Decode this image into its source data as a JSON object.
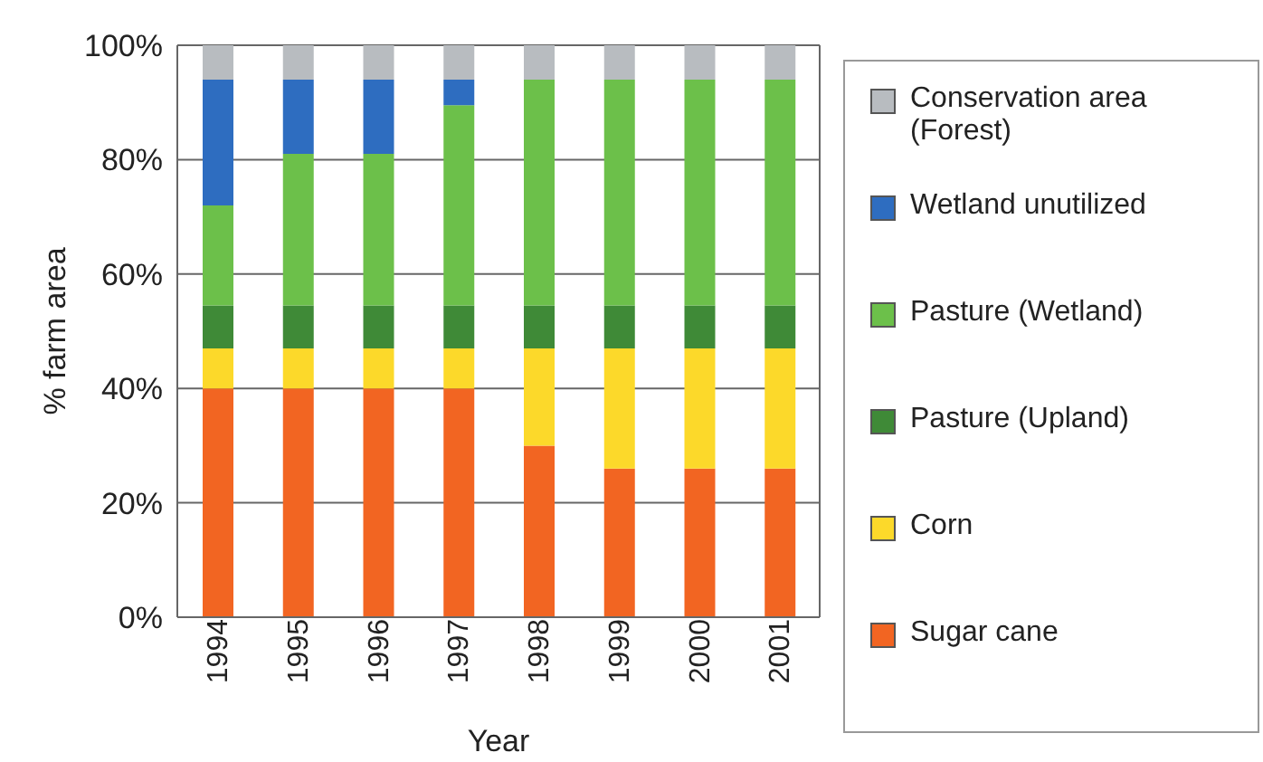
{
  "chart_data": {
    "type": "bar",
    "stacked": true,
    "xlabel": "Year",
    "ylabel": "% farm area",
    "categories": [
      "1994",
      "1995",
      "1996",
      "1997",
      "1998",
      "1999",
      "2000",
      "2001"
    ],
    "series": [
      {
        "name": "Sugar cane",
        "color": "#f26522",
        "values": [
          40,
          40,
          40,
          40,
          30,
          26,
          26,
          26
        ]
      },
      {
        "name": "Corn",
        "color": "#fcd92a",
        "values": [
          7,
          7,
          7,
          7,
          17,
          21,
          21,
          21
        ]
      },
      {
        "name": "Pasture (Upland)",
        "color": "#3f8a37",
        "values": [
          7.5,
          7.5,
          7.5,
          7.5,
          7.5,
          7.5,
          7.5,
          7.5
        ]
      },
      {
        "name": "Pasture (Wetland)",
        "color": "#6cc04a",
        "values": [
          17.5,
          26.5,
          26.5,
          35,
          39.5,
          39.5,
          39.5,
          39.5
        ]
      },
      {
        "name": "Wetland unutilized",
        "color": "#2e6dc0",
        "values": [
          22,
          13,
          13,
          4.5,
          0,
          0,
          0,
          0
        ]
      },
      {
        "name": "Conservation area (Forest)",
        "color": "#b8bcc0",
        "values": [
          6,
          6,
          6,
          6,
          6,
          6,
          6,
          6
        ]
      }
    ],
    "ylim": [
      0,
      100
    ],
    "yticks": [
      {
        "value": 0,
        "label": "0%"
      },
      {
        "value": 20,
        "label": "20%"
      },
      {
        "value": 40,
        "label": "40%"
      },
      {
        "value": 60,
        "label": "60%"
      },
      {
        "value": 80,
        "label": "80%"
      },
      {
        "value": 100,
        "label": "100%"
      }
    ],
    "grid": "y",
    "legend": "right"
  }
}
